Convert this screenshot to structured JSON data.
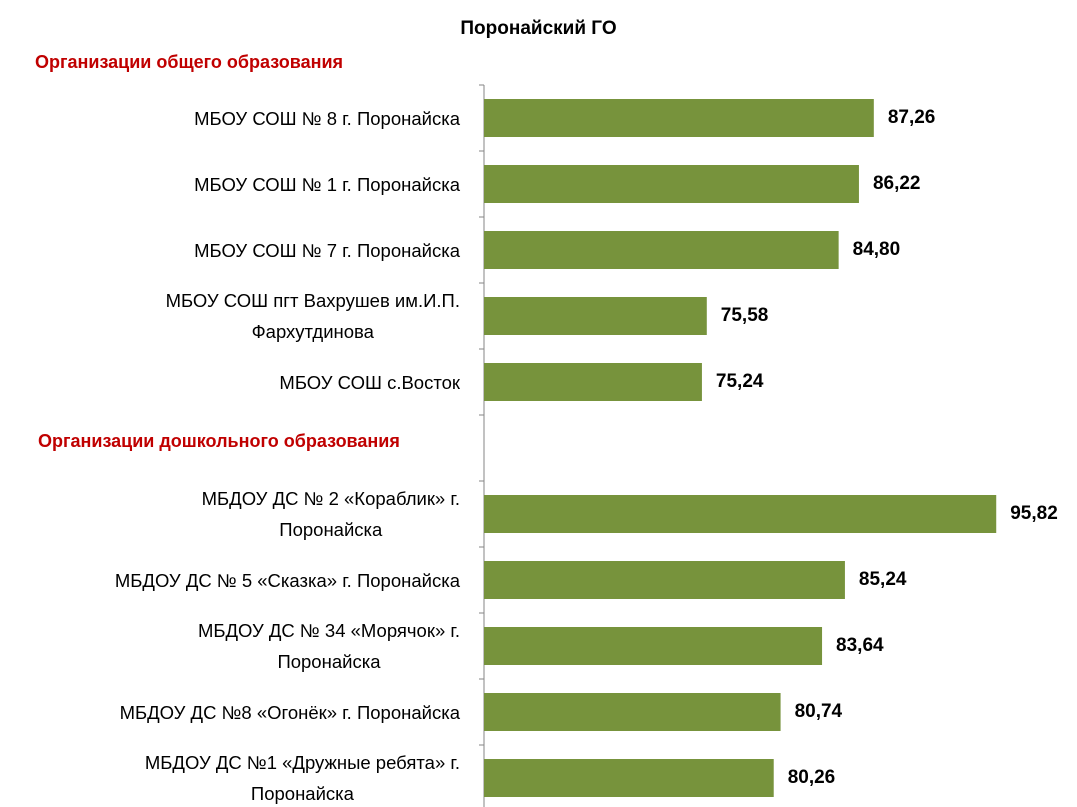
{
  "chart_data": {
    "type": "bar",
    "title": "Поронайский ГО",
    "color": "#77933c",
    "xlim": [
      60,
      100
    ],
    "groups": [
      {
        "label": "Организации общего образования",
        "categories": [
          "МБОУ СОШ № 8 г. Поронайска",
          "МБОУ СОШ № 1 г. Поронайска",
          "МБОУ СОШ № 7 г. Поронайска",
          "МБОУ СОШ пгт Вахрушев им.И.П.\nФархутдинова",
          "МБОУ СОШ с.Восток"
        ],
        "values": [
          87.26,
          86.22,
          84.8,
          75.58,
          75.24
        ],
        "value_labels": [
          "87,26",
          "86,22",
          "84,80",
          "75,58",
          "75,24"
        ]
      },
      {
        "label": "Организации дошкольного образования",
        "categories": [
          "МБДОУ ДС № 2 «Кораблик» г.\nПоронайска",
          "МБДОУ ДС № 5 «Сказка» г. Поронайска",
          "МБДОУ ДС № 34 «Морячок» г.\nПоронайска",
          "МБДОУ ДС №8 «Огонёк» г. Поронайска",
          "МБДОУ ДС №1 «Дружные ребята» г.\nПоронайска"
        ],
        "values": [
          95.82,
          85.24,
          83.64,
          80.74,
          80.26
        ],
        "value_labels": [
          "95,82",
          "85,24",
          "83,64",
          "80,74",
          "80,26"
        ]
      }
    ]
  }
}
